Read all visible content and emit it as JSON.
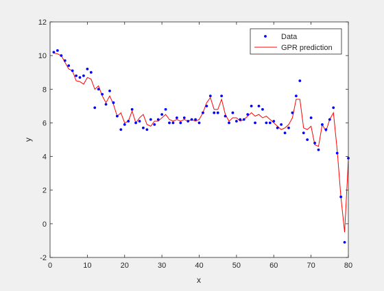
{
  "chart_data": {
    "type": "scatter",
    "title": "",
    "xlabel": "x",
    "ylabel": "y",
    "xlim": [
      0,
      80
    ],
    "ylim": [
      -2,
      12
    ],
    "xticks": [
      "0",
      "10",
      "20",
      "30",
      "40",
      "50",
      "60",
      "70",
      "80"
    ],
    "yticks": [
      "-2",
      "0",
      "2",
      "4",
      "6",
      "8",
      "10",
      "12"
    ],
    "grid": false,
    "legend_position": "top-right",
    "colors": {
      "data": "#0000ff",
      "prediction": "#ff0000",
      "axes": "#262626",
      "plot_background": "#ffffff",
      "figure_background": "#f0f0f0"
    },
    "series": [
      {
        "name": "Data",
        "style": "markers",
        "points": [
          [
            1,
            10.2
          ],
          [
            2,
            10.3
          ],
          [
            3,
            10.0
          ],
          [
            4,
            9.7
          ],
          [
            5,
            9.4
          ],
          [
            6,
            9.1
          ],
          [
            7,
            8.8
          ],
          [
            8,
            8.7
          ],
          [
            9,
            8.8
          ],
          [
            10,
            9.2
          ],
          [
            11,
            9.0
          ],
          [
            12,
            6.9
          ],
          [
            13,
            8.0
          ],
          [
            14,
            7.7
          ],
          [
            15,
            7.1
          ],
          [
            16,
            7.9
          ],
          [
            17,
            7.2
          ],
          [
            18,
            6.4
          ],
          [
            19,
            5.6
          ],
          [
            20,
            5.9
          ],
          [
            21,
            6.1
          ],
          [
            22,
            6.8
          ],
          [
            23,
            6.0
          ],
          [
            24,
            6.1
          ],
          [
            25,
            5.7
          ],
          [
            26,
            5.6
          ],
          [
            27,
            6.2
          ],
          [
            28,
            5.9
          ],
          [
            29,
            6.2
          ],
          [
            30,
            6.5
          ],
          [
            31,
            6.8
          ],
          [
            32,
            6.0
          ],
          [
            33,
            6.0
          ],
          [
            34,
            6.3
          ],
          [
            35,
            6.0
          ],
          [
            36,
            6.3
          ],
          [
            37,
            6.1
          ],
          [
            38,
            6.2
          ],
          [
            39,
            6.2
          ],
          [
            40,
            6.0
          ],
          [
            41,
            6.6
          ],
          [
            42,
            7.0
          ],
          [
            43,
            7.6
          ],
          [
            44,
            6.6
          ],
          [
            45,
            6.6
          ],
          [
            46,
            7.6
          ],
          [
            47,
            6.4
          ],
          [
            48,
            6.0
          ],
          [
            49,
            6.6
          ],
          [
            50,
            6.1
          ],
          [
            51,
            6.2
          ],
          [
            52,
            6.2
          ],
          [
            53,
            6.5
          ],
          [
            54,
            7.0
          ],
          [
            55,
            6.0
          ],
          [
            56,
            7.0
          ],
          [
            57,
            6.8
          ],
          [
            58,
            6.0
          ],
          [
            59,
            6.0
          ],
          [
            60,
            6.1
          ],
          [
            61,
            5.7
          ],
          [
            62,
            5.9
          ],
          [
            63,
            5.4
          ],
          [
            64,
            5.7
          ],
          [
            65,
            6.6
          ],
          [
            66,
            7.6
          ],
          [
            67,
            8.5
          ],
          [
            68,
            5.4
          ],
          [
            69,
            5.0
          ],
          [
            70,
            6.3
          ],
          [
            71,
            4.8
          ],
          [
            72,
            4.4
          ],
          [
            73,
            5.9
          ],
          [
            74,
            5.6
          ],
          [
            75,
            6.2
          ],
          [
            76,
            6.9
          ],
          [
            77,
            4.2
          ],
          [
            78,
            1.6
          ],
          [
            79,
            -1.1
          ],
          [
            80,
            3.9
          ]
        ]
      },
      {
        "name": "GPR prediction",
        "style": "line",
        "points": [
          [
            1,
            10.15
          ],
          [
            2,
            10.1
          ],
          [
            3,
            10.0
          ],
          [
            4,
            9.6
          ],
          [
            5,
            9.2
          ],
          [
            6,
            9.1
          ],
          [
            7,
            8.5
          ],
          [
            8,
            8.45
          ],
          [
            9,
            8.3
          ],
          [
            10,
            8.7
          ],
          [
            11,
            8.6
          ],
          [
            12,
            8.0
          ],
          [
            13,
            8.2
          ],
          [
            14,
            7.6
          ],
          [
            15,
            7.2
          ],
          [
            16,
            7.6
          ],
          [
            17,
            7.1
          ],
          [
            18,
            6.4
          ],
          [
            19,
            6.6
          ],
          [
            20,
            6.0
          ],
          [
            21,
            6.1
          ],
          [
            22,
            6.7
          ],
          [
            23,
            6.0
          ],
          [
            24,
            6.3
          ],
          [
            25,
            6.5
          ],
          [
            26,
            5.9
          ],
          [
            27,
            5.8
          ],
          [
            28,
            6.1
          ],
          [
            29,
            6.1
          ],
          [
            30,
            6.3
          ],
          [
            31,
            6.5
          ],
          [
            32,
            6.2
          ],
          [
            33,
            6.1
          ],
          [
            34,
            6.2
          ],
          [
            35,
            6.1
          ],
          [
            36,
            6.2
          ],
          [
            37,
            6.1
          ],
          [
            38,
            6.2
          ],
          [
            39,
            6.1
          ],
          [
            40,
            6.2
          ],
          [
            41,
            6.6
          ],
          [
            42,
            7.2
          ],
          [
            43,
            7.5
          ],
          [
            44,
            6.8
          ],
          [
            45,
            6.8
          ],
          [
            46,
            7.4
          ],
          [
            47,
            6.5
          ],
          [
            48,
            6.1
          ],
          [
            49,
            6.3
          ],
          [
            50,
            6.3
          ],
          [
            51,
            6.1
          ],
          [
            52,
            6.2
          ],
          [
            53,
            6.4
          ],
          [
            54,
            6.6
          ],
          [
            55,
            6.4
          ],
          [
            56,
            6.5
          ],
          [
            57,
            6.3
          ],
          [
            58,
            6.4
          ],
          [
            59,
            6.2
          ],
          [
            60,
            6.0
          ],
          [
            61,
            5.8
          ],
          [
            62,
            5.6
          ],
          [
            63,
            5.7
          ],
          [
            64,
            5.9
          ],
          [
            65,
            6.3
          ],
          [
            66,
            7.4
          ],
          [
            67,
            7.4
          ],
          [
            68,
            5.7
          ],
          [
            69,
            5.6
          ],
          [
            70,
            5.8
          ],
          [
            71,
            4.7
          ],
          [
            72,
            4.6
          ],
          [
            73,
            5.9
          ],
          [
            74,
            5.5
          ],
          [
            75,
            6.2
          ],
          [
            76,
            6.6
          ],
          [
            77,
            4.4
          ],
          [
            78,
            1.6
          ],
          [
            79,
            -0.5
          ],
          [
            80,
            3.8
          ]
        ]
      }
    ]
  }
}
